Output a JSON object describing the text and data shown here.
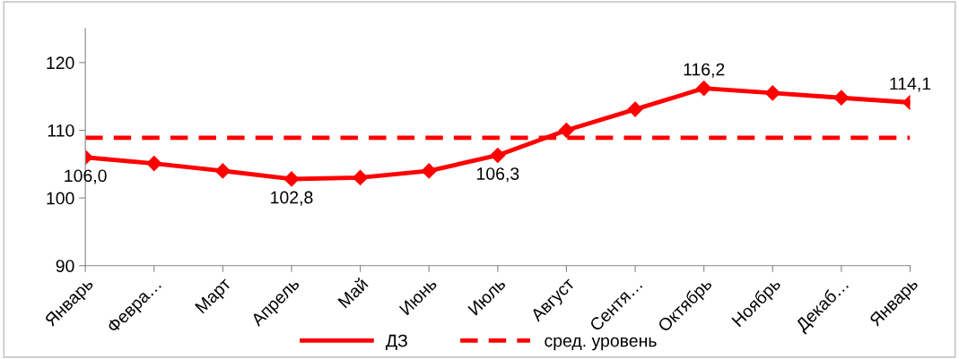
{
  "chart_data": {
    "type": "line",
    "categories": [
      "Январь",
      "Февра…",
      "Март",
      "Апрель",
      "Май",
      "Июнь",
      "Июль",
      "Август",
      "Сентя…",
      "Октябрь",
      "Ноябрь",
      "Декаб…",
      "Январь"
    ],
    "series": [
      {
        "name": "ДЗ",
        "color": "#ff0000",
        "line_style": "solid",
        "marker": "diamond",
        "values": [
          106.0,
          105.1,
          104.0,
          102.8,
          103.0,
          104.0,
          106.3,
          110.0,
          113.1,
          116.2,
          115.5,
          114.8,
          114.1
        ],
        "value_labels": [
          "106,0",
          null,
          null,
          "102,8",
          null,
          null,
          "106,3",
          null,
          null,
          "116,2",
          null,
          null,
          "114,1"
        ]
      },
      {
        "name": "сред. уровень",
        "color": "#ff0000",
        "line_style": "dashed",
        "marker": "none",
        "values": [
          108.9,
          108.9,
          108.9,
          108.9,
          108.9,
          108.9,
          108.9,
          108.9,
          108.9,
          108.9,
          108.9,
          108.9,
          108.9
        ]
      }
    ],
    "ylim": [
      90,
      125
    ],
    "yticks": [
      90,
      100,
      110,
      120
    ],
    "grid": false,
    "legend": "bottom"
  }
}
